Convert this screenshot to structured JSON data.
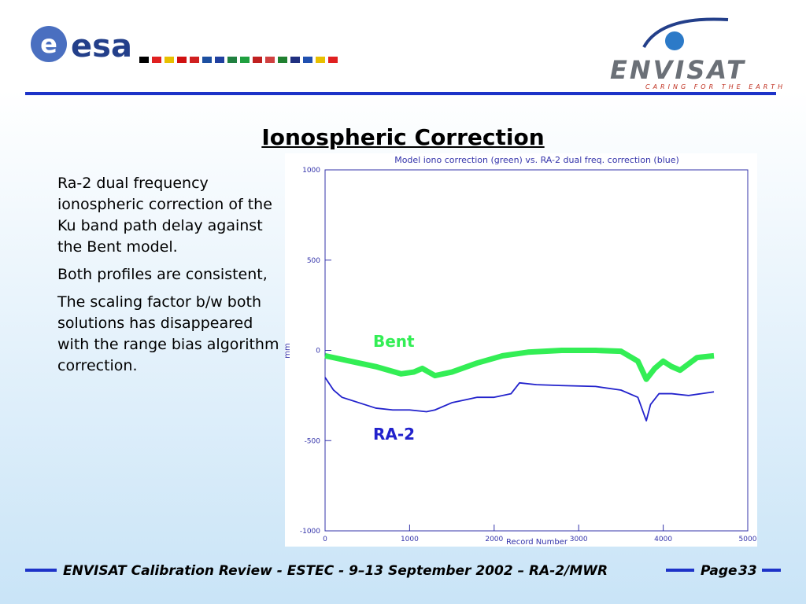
{
  "logos": {
    "esa_mark": "e",
    "esa": "esa",
    "envisat": "ENVISAT",
    "tagline": "CARING FOR THE EARTH"
  },
  "title": "Ionospheric Correction",
  "paragraphs": [
    "Ra-2 dual frequency ionospheric correction of the Ku band path delay against the Bent model.",
    "Both profiles are consistent,",
    "The scaling factor b/w both solutions has disappeared with the range bias algorithm correction."
  ],
  "footer": {
    "text": "ENVISAT Calibration Review - ESTEC - 9–13 September 2002 – RA-2/MWR",
    "page_label": "Page",
    "page": "33"
  },
  "chart_data": {
    "type": "line",
    "title": "Model iono correction (green) vs. RA-2 dual freq. correction (blue)",
    "x_label": "Record Number",
    "y_label": "mm",
    "xlim": [
      0,
      5000
    ],
    "xticks": [
      0,
      1000,
      2000,
      3000,
      4000,
      5000
    ],
    "ylim": [
      -1000,
      1000
    ],
    "yticks": [
      -1000,
      -500,
      0,
      500,
      1000
    ],
    "annotations": [
      "Bent",
      "RA-2"
    ],
    "series": [
      {
        "name": "Bent",
        "color": "#33ee55",
        "x": [
          0,
          300,
          600,
          900,
          1050,
          1150,
          1300,
          1500,
          1800,
          2100,
          2400,
          2800,
          3200,
          3500,
          3700,
          3800,
          3900,
          4000,
          4100,
          4200,
          4400,
          4600
        ],
        "values": [
          -30,
          -60,
          -90,
          -130,
          -120,
          -100,
          -140,
          -120,
          -70,
          -30,
          -10,
          0,
          0,
          -5,
          -60,
          -160,
          -100,
          -60,
          -90,
          -110,
          -40,
          -30
        ]
      },
      {
        "name": "RA-2",
        "color": "#2222cc",
        "x": [
          0,
          100,
          200,
          400,
          600,
          800,
          1000,
          1200,
          1300,
          1500,
          1800,
          2000,
          2200,
          2300,
          2500,
          2800,
          3200,
          3500,
          3700,
          3800,
          3850,
          3950,
          4100,
          4300,
          4600
        ],
        "values": [
          -150,
          -220,
          -260,
          -290,
          -320,
          -330,
          -330,
          -340,
          -330,
          -290,
          -260,
          -260,
          -240,
          -180,
          -190,
          -195,
          -200,
          -220,
          -260,
          -390,
          -300,
          -240,
          -240,
          -250,
          -230
        ]
      }
    ]
  }
}
